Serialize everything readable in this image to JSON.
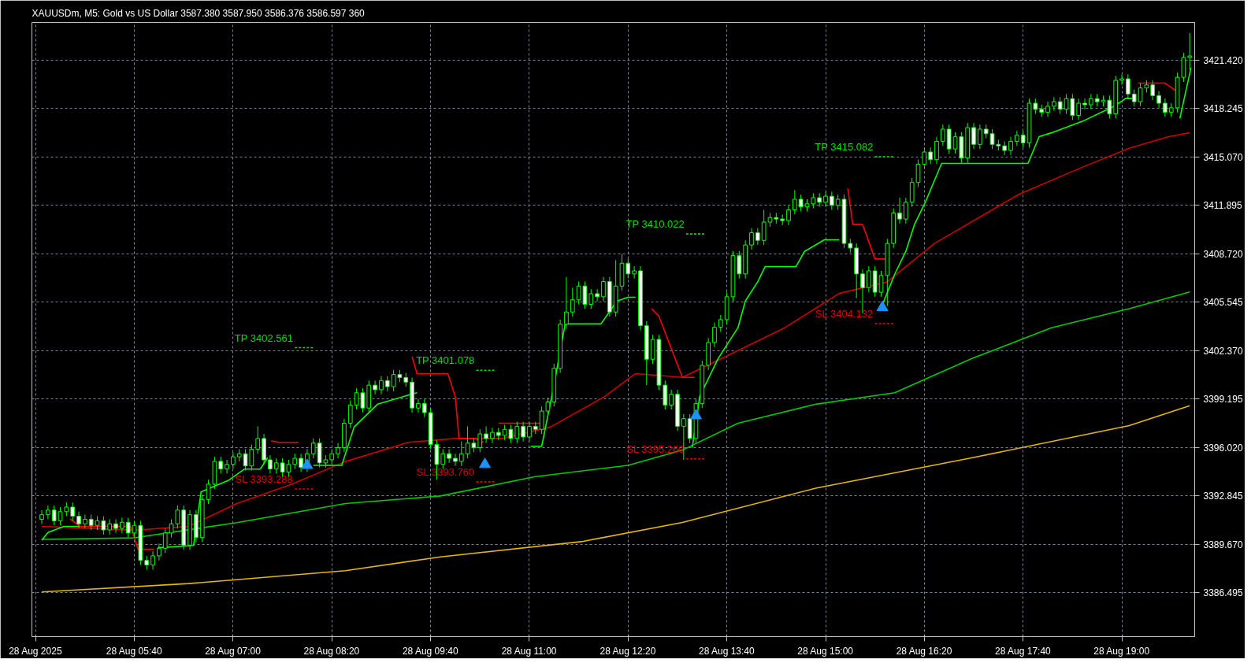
{
  "chart_data": {
    "type": "candlestick",
    "title": "XAUUSDm, M5:  Gold vs US Dollar  3587.380 3587.950 3586.376 3586.597  360",
    "xlim": [
      "2025-08-28T04:17",
      "2025-08-28T19:59"
    ],
    "ylim": [
      3383.6,
      3423.9
    ],
    "xticks": [
      {
        "value": "2025-08-28T04:20",
        "label": "28 Aug 2025"
      },
      {
        "value": "2025-08-28T05:40",
        "label": "28 Aug 05:40"
      },
      {
        "value": "2025-08-28T07:00",
        "label": "28 Aug 07:00"
      },
      {
        "value": "2025-08-28T08:20",
        "label": "28 Aug 08:20"
      },
      {
        "value": "2025-08-28T09:40",
        "label": "28 Aug 09:40"
      },
      {
        "value": "2025-08-28T11:00",
        "label": "28 Aug 11:00"
      },
      {
        "value": "2025-08-28T12:20",
        "label": "28 Aug 12:20"
      },
      {
        "value": "2025-08-28T13:40",
        "label": "28 Aug 13:40"
      },
      {
        "value": "2025-08-28T15:00",
        "label": "28 Aug 15:00"
      },
      {
        "value": "2025-08-28T16:20",
        "label": "28 Aug 16:20"
      },
      {
        "value": "2025-08-28T17:40",
        "label": "28 Aug 17:40"
      },
      {
        "value": "2025-08-28T19:00",
        "label": "28 Aug 19:00"
      }
    ],
    "yticks": [
      {
        "value": 3421.42,
        "label": "3421.420"
      },
      {
        "value": 3418.245,
        "label": "3418.245"
      },
      {
        "value": 3415.07,
        "label": "3415.070"
      },
      {
        "value": 3411.895,
        "label": "3411.895"
      },
      {
        "value": 3408.72,
        "label": "3408.720"
      },
      {
        "value": 3405.545,
        "label": "3405.545"
      },
      {
        "value": 3402.37,
        "label": "3402.370"
      },
      {
        "value": 3399.195,
        "label": "3399.195"
      },
      {
        "value": 3396.02,
        "label": "3396.020"
      },
      {
        "value": 3392.845,
        "label": "3392.845"
      },
      {
        "value": 3389.67,
        "label": "3389.670"
      },
      {
        "value": 3386.495,
        "label": "3386.495"
      }
    ],
    "grid": true,
    "series": [
      {
        "type": "line",
        "color": "#e6b800",
        "x": [
          "2025-08-28T04:25",
          "2025-08-28T06:24",
          "2025-08-28T08:31",
          "2025-08-28T09:48",
          "2025-08-28T11:42",
          "2025-08-28T13:04",
          "2025-08-28T14:52",
          "2025-08-28T16:59",
          "2025-08-28T19:06",
          "2025-08-28T19:55"
        ],
        "values": [
          3386.53,
          3387.08,
          3387.93,
          3388.83,
          3389.83,
          3391.09,
          3393.34,
          3395.34,
          3397.45,
          3398.75
        ]
      },
      {
        "type": "line",
        "color": "#00cc00",
        "x": [
          "2025-08-28T04:25",
          "2025-08-28T05:40",
          "2025-08-28T07:03",
          "2025-08-28T08:31",
          "2025-08-28T09:48",
          "2025-08-28T11:04",
          "2025-08-28T12:20",
          "2025-08-28T13:04",
          "2025-08-28T13:49",
          "2025-08-28T14:52",
          "2025-08-28T15:56",
          "2025-08-28T16:59",
          "2025-08-28T18:03",
          "2025-08-28T19:06",
          "2025-08-28T19:55"
        ],
        "values": [
          3389.98,
          3390.08,
          3391.08,
          3392.33,
          3392.83,
          3394.09,
          3394.84,
          3395.84,
          3397.6,
          3398.85,
          3399.6,
          3401.86,
          3403.87,
          3405.12,
          3406.22
        ]
      },
      {
        "type": "line",
        "color": "#cc0000",
        "x": [
          "2025-08-28T04:25",
          "2025-08-28T05:40",
          "2025-08-28T06:24",
          "2025-08-28T07:03",
          "2025-08-28T07:47",
          "2025-08-28T08:31",
          "2025-08-28T09:22",
          "2025-08-28T10:00",
          "2025-08-28T10:38",
          "2025-08-28T11:17",
          "2025-08-28T12:01",
          "2025-08-28T12:26",
          "2025-08-28T13:04",
          "2025-08-28T13:49",
          "2025-08-28T14:27",
          "2025-08-28T15:11",
          "2025-08-28T15:50",
          "2025-08-28T16:28",
          "2025-08-28T17:37",
          "2025-08-28T18:28",
          "2025-08-28T19:06",
          "2025-08-28T19:38",
          "2025-08-28T19:55"
        ],
        "values": [
          3390.83,
          3390.58,
          3390.83,
          3392.33,
          3393.59,
          3395.09,
          3396.35,
          3396.6,
          3396.6,
          3397.35,
          3399.35,
          3400.86,
          3400.61,
          3402.37,
          3403.87,
          3406.12,
          3406.88,
          3409.39,
          3412.64,
          3414.4,
          3415.65,
          3416.41,
          3416.66
        ]
      },
      {
        "color": "#00ff00",
        "x": [
          "2025-08-28T04:25",
          "2025-08-28T04:30",
          "2025-08-28T04:35",
          "2025-08-28T04:40",
          "2025-08-28T04:45",
          "2025-08-28T04:50",
          "2025-08-28T04:55",
          "2025-08-28T05:00",
          "2025-08-28T05:05",
          "2025-08-28T05:10",
          "2025-08-28T05:15",
          "2025-08-28T05:20",
          "2025-08-28T05:25",
          "2025-08-28T05:30",
          "2025-08-28T05:35",
          "2025-08-28T05:40",
          "2025-08-28T05:45",
          "2025-08-28T05:50",
          "2025-08-28T05:55",
          "2025-08-28T06:00",
          "2025-08-28T06:05",
          "2025-08-28T06:10",
          "2025-08-28T06:15",
          "2025-08-28T06:20",
          "2025-08-28T06:25",
          "2025-08-28T06:30",
          "2025-08-28T06:35",
          "2025-08-28T06:40",
          "2025-08-28T06:45",
          "2025-08-28T06:50",
          "2025-08-28T06:55",
          "2025-08-28T07:00",
          "2025-08-28T07:05",
          "2025-08-28T07:10",
          "2025-08-28T07:15",
          "2025-08-28T07:20",
          "2025-08-28T07:25",
          "2025-08-28T07:30",
          "2025-08-28T07:35",
          "2025-08-28T07:40",
          "2025-08-28T07:45",
          "2025-08-28T07:50",
          "2025-08-28T07:55",
          "2025-08-28T08:00",
          "2025-08-28T08:05",
          "2025-08-28T08:10",
          "2025-08-28T08:15",
          "2025-08-28T08:20",
          "2025-08-28T08:25",
          "2025-08-28T08:30",
          "2025-08-28T08:35",
          "2025-08-28T08:40",
          "2025-08-28T08:45",
          "2025-08-28T08:50",
          "2025-08-28T08:55",
          "2025-08-28T09:00",
          "2025-08-28T09:05",
          "2025-08-28T09:10",
          "2025-08-28T09:15",
          "2025-08-28T09:20",
          "2025-08-28T09:25",
          "2025-08-28T09:30",
          "2025-08-28T09:35",
          "2025-08-28T09:40",
          "2025-08-28T09:45",
          "2025-08-28T09:50",
          "2025-08-28T09:55",
          "2025-08-28T10:00",
          "2025-08-28T10:05",
          "2025-08-28T10:10",
          "2025-08-28T10:15",
          "2025-08-28T10:20",
          "2025-08-28T10:25",
          "2025-08-28T10:30",
          "2025-08-28T10:35",
          "2025-08-28T10:40",
          "2025-08-28T10:45",
          "2025-08-28T10:50",
          "2025-08-28T10:55",
          "2025-08-28T11:00",
          "2025-08-28T11:05",
          "2025-08-28T11:10",
          "2025-08-28T11:15",
          "2025-08-28T11:20",
          "2025-08-28T11:25",
          "2025-08-28T11:30",
          "2025-08-28T11:35",
          "2025-08-28T11:40",
          "2025-08-28T11:45",
          "2025-08-28T11:50",
          "2025-08-28T11:55",
          "2025-08-28T12:00",
          "2025-08-28T12:05",
          "2025-08-28T12:10",
          "2025-08-28T12:15",
          "2025-08-28T12:20",
          "2025-08-28T12:25",
          "2025-08-28T12:30",
          "2025-08-28T12:35",
          "2025-08-28T12:40",
          "2025-08-28T12:45",
          "2025-08-28T12:50",
          "2025-08-28T12:55",
          "2025-08-28T13:00",
          "2025-08-28T13:05",
          "2025-08-28T13:10",
          "2025-08-28T13:15",
          "2025-08-28T13:20",
          "2025-08-28T13:25",
          "2025-08-28T13:30",
          "2025-08-28T13:35",
          "2025-08-28T13:40",
          "2025-08-28T13:45",
          "2025-08-28T13:50",
          "2025-08-28T13:55",
          "2025-08-28T14:00",
          "2025-08-28T14:05",
          "2025-08-28T14:10",
          "2025-08-28T14:15",
          "2025-08-28T14:20",
          "2025-08-28T14:25",
          "2025-08-28T14:30",
          "2025-08-28T14:35",
          "2025-08-28T14:40",
          "2025-08-28T14:45",
          "2025-08-28T14:50",
          "2025-08-28T14:55",
          "2025-08-28T15:00",
          "2025-08-28T15:05",
          "2025-08-28T15:10",
          "2025-08-28T15:15",
          "2025-08-28T15:20",
          "2025-08-28T15:25",
          "2025-08-28T15:30",
          "2025-08-28T15:35",
          "2025-08-28T15:40",
          "2025-08-28T15:45",
          "2025-08-28T15:50",
          "2025-08-28T15:55",
          "2025-08-28T16:00",
          "2025-08-28T16:05",
          "2025-08-28T16:10",
          "2025-08-28T16:15",
          "2025-08-28T16:20",
          "2025-08-28T16:25",
          "2025-08-28T16:30",
          "2025-08-28T16:35",
          "2025-08-28T16:40",
          "2025-08-28T16:45",
          "2025-08-28T16:50",
          "2025-08-28T16:55",
          "2025-08-28T17:00",
          "2025-08-28T17:05",
          "2025-08-28T17:10",
          "2025-08-28T17:15",
          "2025-08-28T17:20",
          "2025-08-28T17:25",
          "2025-08-28T17:30",
          "2025-08-28T17:35",
          "2025-08-28T17:40",
          "2025-08-28T17:45",
          "2025-08-28T17:50",
          "2025-08-28T17:55",
          "2025-08-28T18:00",
          "2025-08-28T18:05",
          "2025-08-28T18:10",
          "2025-08-28T18:15",
          "2025-08-28T18:20",
          "2025-08-28T18:25",
          "2025-08-28T18:30",
          "2025-08-28T18:35",
          "2025-08-28T18:40",
          "2025-08-28T18:45",
          "2025-08-28T18:50",
          "2025-08-28T18:55",
          "2025-08-28T19:00",
          "2025-08-28T19:05",
          "2025-08-28T19:10",
          "2025-08-28T19:15",
          "2025-08-28T19:20",
          "2025-08-28T19:25",
          "2025-08-28T19:30",
          "2025-08-28T19:35",
          "2025-08-28T19:40",
          "2025-08-28T19:45",
          "2025-08-28T19:50",
          "2025-08-28T19:55"
        ],
        "ohlc": [
          [
            3391.3,
            3391.9,
            3391.0,
            3391.6
          ],
          [
            3391.6,
            3392.2,
            3391.3,
            3391.9
          ],
          [
            3391.9,
            3392.2,
            3390.9,
            3391.2
          ],
          [
            3391.2,
            3392.1,
            3390.9,
            3391.8
          ],
          [
            3391.8,
            3392.4,
            3391.5,
            3392.1
          ],
          [
            3392.1,
            3392.4,
            3391.2,
            3391.5
          ],
          [
            3391.5,
            3391.8,
            3390.7,
            3391.0
          ],
          [
            3391.0,
            3391.6,
            3390.7,
            3391.3
          ],
          [
            3391.3,
            3391.6,
            3390.6,
            3390.9
          ],
          [
            3390.9,
            3391.5,
            3390.6,
            3391.2
          ],
          [
            3391.2,
            3391.5,
            3390.3,
            3390.6
          ],
          [
            3390.6,
            3391.3,
            3390.3,
            3391.0
          ],
          [
            3391.0,
            3391.3,
            3390.4,
            3390.7
          ],
          [
            3390.7,
            3391.4,
            3390.4,
            3391.1
          ],
          [
            3391.1,
            3391.4,
            3390.1,
            3390.4
          ],
          [
            3390.4,
            3391.2,
            3390.1,
            3390.9
          ],
          [
            3390.9,
            3391.2,
            3388.3,
            3388.6
          ],
          [
            3388.6,
            3388.9,
            3388.0,
            3388.3
          ],
          [
            3388.3,
            3389.2,
            3388.0,
            3388.9
          ],
          [
            3388.9,
            3389.7,
            3388.6,
            3389.4
          ],
          [
            3389.4,
            3390.7,
            3389.1,
            3390.4
          ],
          [
            3390.4,
            3391.3,
            3390.1,
            3391.0
          ],
          [
            3391.0,
            3392.2,
            3390.7,
            3391.9
          ],
          [
            3391.9,
            3392.2,
            3389.3,
            3389.6
          ],
          [
            3389.6,
            3391.9,
            3389.3,
            3391.6
          ],
          [
            3391.6,
            3391.9,
            3389.8,
            3390.1
          ],
          [
            3390.1,
            3392.9,
            3389.8,
            3392.6
          ],
          [
            3392.6,
            3393.9,
            3392.3,
            3393.6
          ],
          [
            3393.6,
            3395.4,
            3393.3,
            3395.1
          ],
          [
            3395.1,
            3395.4,
            3394.3,
            3394.6
          ],
          [
            3394.6,
            3395.2,
            3394.3,
            3394.9
          ],
          [
            3394.9,
            3395.7,
            3394.6,
            3395.4
          ],
          [
            3395.4,
            3395.9,
            3395.1,
            3395.6
          ],
          [
            3395.6,
            3395.9,
            3394.5,
            3394.8
          ],
          [
            3394.8,
            3396.2,
            3394.5,
            3395.9
          ],
          [
            3395.9,
            3397.4,
            3395.6,
            3396.6
          ],
          [
            3396.6,
            3396.9,
            3394.9,
            3395.2
          ],
          [
            3395.2,
            3395.5,
            3394.3,
            3394.6
          ],
          [
            3394.6,
            3395.3,
            3394.3,
            3395.0
          ],
          [
            3395.0,
            3395.3,
            3394.1,
            3394.4
          ],
          [
            3394.4,
            3395.2,
            3394.1,
            3394.9
          ],
          [
            3394.9,
            3395.6,
            3394.6,
            3395.3
          ],
          [
            3395.3,
            3395.6,
            3394.4,
            3394.7
          ],
          [
            3394.7,
            3395.9,
            3394.4,
            3395.6
          ],
          [
            3395.6,
            3396.6,
            3395.3,
            3396.3
          ],
          [
            3396.3,
            3396.6,
            3394.7,
            3395.0
          ],
          [
            3395.0,
            3395.5,
            3394.7,
            3395.2
          ],
          [
            3395.2,
            3395.9,
            3394.9,
            3395.6
          ],
          [
            3395.6,
            3396.3,
            3395.3,
            3396.0
          ],
          [
            3396.0,
            3397.9,
            3395.7,
            3397.6
          ],
          [
            3397.6,
            3399.1,
            3397.3,
            3398.8
          ],
          [
            3398.8,
            3399.9,
            3398.5,
            3399.6
          ],
          [
            3399.6,
            3399.9,
            3398.3,
            3398.6
          ],
          [
            3398.6,
            3400.4,
            3398.3,
            3400.1
          ],
          [
            3400.1,
            3400.4,
            3399.5,
            3399.8
          ],
          [
            3399.8,
            3400.7,
            3399.5,
            3400.4
          ],
          [
            3400.4,
            3400.7,
            3399.7,
            3400.0
          ],
          [
            3400.0,
            3401.1,
            3399.7,
            3400.8
          ],
          [
            3400.8,
            3401.1,
            3400.3,
            3400.6
          ],
          [
            3400.6,
            3400.9,
            3400.0,
            3400.3
          ],
          [
            3400.3,
            3400.6,
            3398.3,
            3398.6
          ],
          [
            3398.6,
            3399.2,
            3398.3,
            3398.9
          ],
          [
            3398.9,
            3399.2,
            3398.0,
            3398.3
          ],
          [
            3398.3,
            3398.6,
            3395.9,
            3396.2
          ],
          [
            3396.2,
            3396.5,
            3393.9,
            3394.9
          ],
          [
            3394.9,
            3395.9,
            3394.6,
            3395.6
          ],
          [
            3395.6,
            3395.9,
            3395.0,
            3395.3
          ],
          [
            3395.3,
            3395.6,
            3394.8,
            3395.1
          ],
          [
            3395.1,
            3396.4,
            3394.8,
            3395.6
          ],
          [
            3395.6,
            3397.4,
            3395.3,
            3396.3
          ],
          [
            3396.3,
            3396.6,
            3395.7,
            3396.0
          ],
          [
            3396.0,
            3397.2,
            3395.7,
            3396.9
          ],
          [
            3396.9,
            3397.4,
            3396.3,
            3396.6
          ],
          [
            3396.6,
            3397.3,
            3396.3,
            3397.0
          ],
          [
            3397.0,
            3397.3,
            3396.5,
            3396.8
          ],
          [
            3396.8,
            3397.5,
            3396.5,
            3397.2
          ],
          [
            3397.2,
            3397.5,
            3396.3,
            3396.6
          ],
          [
            3396.6,
            3397.7,
            3396.3,
            3397.4
          ],
          [
            3397.4,
            3397.7,
            3396.4,
            3396.7
          ],
          [
            3396.7,
            3397.7,
            3396.4,
            3397.4
          ],
          [
            3397.4,
            3397.7,
            3396.9,
            3397.2
          ],
          [
            3397.2,
            3398.7,
            3396.9,
            3398.4
          ],
          [
            3398.4,
            3399.3,
            3398.1,
            3399.0
          ],
          [
            3399.0,
            3401.5,
            3398.7,
            3401.2
          ],
          [
            3401.2,
            3404.4,
            3400.9,
            3404.1
          ],
          [
            3404.1,
            3407.2,
            3403.8,
            3404.9
          ],
          [
            3404.9,
            3406.5,
            3404.6,
            3405.7
          ],
          [
            3405.7,
            3406.9,
            3405.4,
            3406.6
          ],
          [
            3406.6,
            3406.9,
            3405.1,
            3405.4
          ],
          [
            3405.4,
            3406.4,
            3405.1,
            3406.1
          ],
          [
            3406.1,
            3406.4,
            3405.6,
            3405.9
          ],
          [
            3405.9,
            3407.2,
            3405.6,
            3406.9
          ],
          [
            3406.9,
            3407.2,
            3404.6,
            3404.9
          ],
          [
            3404.9,
            3408.3,
            3404.6,
            3406.6
          ],
          [
            3406.6,
            3408.7,
            3406.3,
            3408.1
          ],
          [
            3408.1,
            3408.4,
            3407.1,
            3407.4
          ],
          [
            3407.4,
            3407.9,
            3407.1,
            3407.6
          ],
          [
            3407.6,
            3407.9,
            3403.7,
            3404.0
          ],
          [
            3404.0,
            3404.3,
            3400.1,
            3401.8
          ],
          [
            3401.8,
            3403.4,
            3401.5,
            3403.1
          ],
          [
            3403.1,
            3403.4,
            3399.8,
            3400.1
          ],
          [
            3400.1,
            3400.4,
            3398.5,
            3398.8
          ],
          [
            3398.8,
            3399.8,
            3398.5,
            3399.5
          ],
          [
            3399.5,
            3399.8,
            3397.1,
            3397.4
          ],
          [
            3397.4,
            3398.2,
            3395.2,
            3397.9
          ],
          [
            3397.9,
            3398.2,
            3396.3,
            3396.6
          ],
          [
            3396.6,
            3399.2,
            3396.3,
            3398.9
          ],
          [
            3398.9,
            3401.7,
            3398.6,
            3401.4
          ],
          [
            3401.4,
            3403.2,
            3401.1,
            3402.9
          ],
          [
            3402.9,
            3404.2,
            3402.6,
            3403.9
          ],
          [
            3403.9,
            3404.7,
            3403.6,
            3404.4
          ],
          [
            3404.4,
            3406.2,
            3404.1,
            3405.9
          ],
          [
            3405.9,
            3408.9,
            3405.6,
            3408.6
          ],
          [
            3408.6,
            3408.9,
            3407.1,
            3407.4
          ],
          [
            3407.4,
            3409.6,
            3407.1,
            3409.3
          ],
          [
            3409.3,
            3410.4,
            3409.0,
            3410.1
          ],
          [
            3410.1,
            3410.4,
            3409.3,
            3409.6
          ],
          [
            3409.6,
            3411.6,
            3409.3,
            3410.8
          ],
          [
            3410.8,
            3411.4,
            3410.5,
            3411.1
          ],
          [
            3411.1,
            3411.4,
            3410.7,
            3411.0
          ],
          [
            3411.0,
            3411.3,
            3410.6,
            3410.9
          ],
          [
            3410.9,
            3411.9,
            3410.6,
            3411.6
          ],
          [
            3411.6,
            3412.9,
            3411.3,
            3412.3
          ],
          [
            3412.3,
            3412.6,
            3411.5,
            3411.8
          ],
          [
            3411.8,
            3412.3,
            3411.5,
            3412.0
          ],
          [
            3412.0,
            3412.7,
            3411.7,
            3412.4
          ],
          [
            3412.4,
            3412.7,
            3411.8,
            3412.1
          ],
          [
            3412.1,
            3412.8,
            3411.8,
            3412.5
          ],
          [
            3412.5,
            3412.8,
            3411.6,
            3411.9
          ],
          [
            3411.9,
            3412.6,
            3411.6,
            3412.3
          ],
          [
            3412.3,
            3412.6,
            3409.1,
            3409.4
          ],
          [
            3409.4,
            3409.7,
            3408.8,
            3409.1
          ],
          [
            3409.1,
            3409.4,
            3405.8,
            3407.4
          ],
          [
            3407.4,
            3407.7,
            3404.8,
            3406.5
          ],
          [
            3406.5,
            3407.9,
            3406.2,
            3407.6
          ],
          [
            3407.6,
            3407.9,
            3405.9,
            3406.2
          ],
          [
            3406.2,
            3407.6,
            3405.9,
            3407.3
          ],
          [
            3407.3,
            3409.7,
            3405.3,
            3409.4
          ],
          [
            3409.4,
            3411.7,
            3409.1,
            3411.4
          ],
          [
            3411.4,
            3412.4,
            3410.7,
            3411.0
          ],
          [
            3411.0,
            3412.4,
            3410.7,
            3412.1
          ],
          [
            3412.1,
            3413.7,
            3411.8,
            3413.4
          ],
          [
            3413.4,
            3414.9,
            3413.1,
            3414.6
          ],
          [
            3414.6,
            3415.7,
            3414.3,
            3415.4
          ],
          [
            3415.4,
            3415.7,
            3414.6,
            3414.9
          ],
          [
            3414.9,
            3416.4,
            3414.6,
            3416.1
          ],
          [
            3416.1,
            3417.2,
            3415.8,
            3416.9
          ],
          [
            3416.9,
            3417.2,
            3415.3,
            3415.6
          ],
          [
            3415.6,
            3416.7,
            3415.3,
            3416.4
          ],
          [
            3416.4,
            3416.7,
            3414.7,
            3415.0
          ],
          [
            3415.0,
            3417.3,
            3414.7,
            3417.0
          ],
          [
            3417.0,
            3417.3,
            3415.6,
            3415.9
          ],
          [
            3415.9,
            3417.2,
            3415.6,
            3416.9
          ],
          [
            3416.9,
            3417.2,
            3416.3,
            3416.6
          ],
          [
            3416.6,
            3416.9,
            3415.6,
            3415.9
          ],
          [
            3415.9,
            3416.2,
            3415.5,
            3415.8
          ],
          [
            3415.8,
            3416.1,
            3415.2,
            3415.5
          ],
          [
            3415.5,
            3416.4,
            3415.2,
            3416.1
          ],
          [
            3416.1,
            3416.8,
            3415.8,
            3416.5
          ],
          [
            3416.5,
            3416.8,
            3415.7,
            3416.0
          ],
          [
            3416.0,
            3418.9,
            3415.7,
            3418.6
          ],
          [
            3418.6,
            3418.9,
            3417.9,
            3418.2
          ],
          [
            3418.2,
            3418.5,
            3417.7,
            3418.0
          ],
          [
            3418.0,
            3418.7,
            3417.7,
            3418.4
          ],
          [
            3418.4,
            3419.0,
            3418.1,
            3418.7
          ],
          [
            3418.7,
            3419.0,
            3417.9,
            3418.2
          ],
          [
            3418.2,
            3419.2,
            3417.9,
            3418.9
          ],
          [
            3418.9,
            3419.2,
            3417.5,
            3417.8
          ],
          [
            3417.8,
            3418.9,
            3417.5,
            3418.6
          ],
          [
            3418.6,
            3418.9,
            3418.2,
            3418.5
          ],
          [
            3418.5,
            3419.2,
            3418.2,
            3418.9
          ],
          [
            3418.9,
            3419.2,
            3418.4,
            3418.7
          ],
          [
            3418.7,
            3419.1,
            3418.4,
            3418.8
          ],
          [
            3418.8,
            3419.1,
            3417.6,
            3417.9
          ],
          [
            3417.9,
            3420.4,
            3417.6,
            3420.1
          ],
          [
            3420.1,
            3420.5,
            3419.8,
            3420.2
          ],
          [
            3420.2,
            3420.5,
            3418.9,
            3419.2
          ],
          [
            3419.2,
            3419.5,
            3418.4,
            3418.7
          ],
          [
            3418.7,
            3419.9,
            3418.4,
            3419.6
          ],
          [
            3419.6,
            3420.1,
            3419.3,
            3419.8
          ],
          [
            3419.8,
            3420.1,
            3418.8,
            3419.1
          ],
          [
            3419.1,
            3419.4,
            3418.3,
            3418.6
          ],
          [
            3418.6,
            3418.9,
            3417.7,
            3418.0
          ],
          [
            3418.0,
            3418.6,
            3417.7,
            3418.3
          ],
          [
            3418.3,
            3420.6,
            3418.0,
            3420.3
          ],
          [
            3420.3,
            3421.9,
            3420.0,
            3421.6
          ],
          [
            3421.6,
            3423.2,
            3420.8,
            3421.7
          ]
        ]
      },
      {
        "type": "line",
        "color": "#00ff00",
        "x": [
          "2025-08-28T04:25",
          "2025-08-28T04:30",
          "2025-08-28T04:43",
          "2025-08-28T04:56"
        ],
        "values": [
          3389.93,
          3390.43,
          3390.83,
          3390.83
        ]
      },
      {
        "type": "line",
        "color": "#ff0000",
        "x": [
          "2025-08-28T04:48",
          "2025-08-28T04:56",
          "2025-08-28T05:37",
          "2025-08-28T05:43",
          "2025-08-28T05:56"
        ],
        "values": [
          3391.33,
          3390.83,
          3390.83,
          3389.33,
          3389.33
        ]
      },
      {
        "type": "line",
        "color": "#00ff00",
        "x": [
          "2025-08-28T05:59",
          "2025-08-28T06:28",
          "2025-08-28T06:34",
          "2025-08-28T06:44",
          "2025-08-28T06:56",
          "2025-08-28T07:09",
          "2025-08-28T07:22",
          "2025-08-28T07:28"
        ],
        "values": [
          3389.43,
          3389.58,
          3393.09,
          3393.44,
          3393.84,
          3394.59,
          3394.59,
          3395.34
        ]
      },
      {
        "type": "line",
        "color": "#ff0000",
        "x": [
          "2025-08-28T07:31",
          "2025-08-28T07:37",
          "2025-08-28T07:53"
        ],
        "values": [
          3396.45,
          3396.35,
          3396.35
        ]
      },
      {
        "type": "line",
        "color": "#00ff00",
        "x": [
          "2025-08-28T08:05",
          "2025-08-28T08:28",
          "2025-08-28T08:38",
          "2025-08-28T08:57",
          "2025-08-28T09:22",
          "2025-08-28T09:29"
        ],
        "values": [
          3394.84,
          3394.84,
          3397.35,
          3398.85,
          3399.45,
          3399.6
        ]
      },
      {
        "type": "line",
        "color": "#ff0000",
        "x": [
          "2025-08-28T09:25",
          "2025-08-28T09:29",
          "2025-08-28T09:54",
          "2025-08-28T10:00",
          "2025-08-28T10:03",
          "2025-08-28T10:16",
          "2025-08-28T10:23"
        ],
        "values": [
          3401.96,
          3400.86,
          3400.86,
          3399.35,
          3396.6,
          3396.6,
          3396.35
        ]
      },
      {
        "type": "line",
        "color": "#ff0000",
        "x": [
          "2025-08-28T10:35",
          "2025-08-28T11:10"
        ],
        "values": [
          3397.6,
          3397.6
        ]
      },
      {
        "type": "line",
        "color": "#00ff00",
        "x": [
          "2025-08-28T11:01",
          "2025-08-28T11:10",
          "2025-08-28T11:20",
          "2025-08-28T11:29",
          "2025-08-28T11:58",
          "2025-08-28T12:11",
          "2025-08-28T12:20",
          "2025-08-28T12:26"
        ],
        "values": [
          3396.09,
          3396.09,
          3400.11,
          3404.12,
          3404.12,
          3405.62,
          3405.87,
          3405.87
        ]
      },
      {
        "type": "line",
        "color": "#ff0000",
        "x": [
          "2025-08-28T12:39",
          "2025-08-28T12:45",
          "2025-08-28T12:58",
          "2025-08-28T13:04",
          "2025-08-28T13:14"
        ],
        "values": [
          3405.12,
          3404.62,
          3401.86,
          3400.61,
          3400.61
        ]
      },
      {
        "type": "line",
        "color": "#00ff00",
        "x": [
          "2025-08-28T13:12",
          "2025-08-28T13:18",
          "2025-08-28T13:33",
          "2025-08-28T13:49",
          "2025-08-28T13:55",
          "2025-08-28T14:05",
          "2025-08-28T14:11",
          "2025-08-28T14:36",
          "2025-08-28T14:43",
          "2025-08-28T14:59",
          "2025-08-28T15:11"
        ],
        "values": [
          3396.0,
          3399.35,
          3401.86,
          3403.87,
          3405.62,
          3406.88,
          3407.88,
          3407.88,
          3408.88,
          3409.64,
          3409.64
        ]
      },
      {
        "type": "line",
        "color": "#ff0000",
        "x": [
          "2025-08-28T15:18",
          "2025-08-28T15:22",
          "2025-08-28T15:30",
          "2025-08-28T15:40",
          "2025-08-28T15:50"
        ],
        "values": [
          3413.0,
          3410.64,
          3410.64,
          3408.38,
          3408.38
        ]
      },
      {
        "type": "line",
        "color": "#00ff00",
        "x": [
          "2025-08-28T15:46",
          "2025-08-28T15:56",
          "2025-08-28T16:05",
          "2025-08-28T16:12",
          "2025-08-28T16:21",
          "2025-08-28T16:34",
          "2025-08-28T17:44",
          "2025-08-28T17:53",
          "2025-08-28T18:03",
          "2025-08-28T18:28",
          "2025-08-28T18:54",
          "2025-08-28T19:03",
          "2025-08-28T19:10"
        ],
        "values": [
          3405.37,
          3407.38,
          3408.88,
          3410.64,
          3412.14,
          3414.65,
          3414.65,
          3416.41,
          3416.66,
          3417.41,
          3418.41,
          3418.91,
          3418.91
        ]
      },
      {
        "type": "line",
        "color": "#ff0000",
        "x": [
          "2025-08-28T19:13",
          "2025-08-28T19:35",
          "2025-08-28T19:44"
        ],
        "values": [
          3419.92,
          3419.92,
          3419.41
        ]
      },
      {
        "type": "line",
        "color": "#00ff00",
        "x": [
          "2025-08-28T19:47",
          "2025-08-28T19:56"
        ],
        "values": [
          3417.6,
          3420.92
        ]
      },
      {
        "type": "scatter",
        "color": "#1e90ff",
        "marker": "triangle",
        "x": [
          "2025-08-28T08:00",
          "2025-08-28T10:24",
          "2025-08-28T13:15",
          "2025-08-28T15:46"
        ],
        "values": [
          3394.84,
          3394.9,
          3398.1,
          3405.2
        ]
      },
      {
        "type": "line",
        "name": "TP 3402.561",
        "color": "#00e000",
        "line_style": "dashed",
        "x": [
          "2025-08-28T07:50",
          "2025-08-28T08:05"
        ],
        "values": [
          3402.561,
          3402.561
        ]
      },
      {
        "type": "line",
        "name": "SL 3393.288",
        "color": "#e00000",
        "line_style": "dashed",
        "x": [
          "2025-08-28T07:50",
          "2025-08-28T08:05"
        ],
        "values": [
          3393.288,
          3393.288
        ]
      },
      {
        "type": "line",
        "name": "TP 3401.078",
        "color": "#00e000",
        "line_style": "dashed",
        "x": [
          "2025-08-28T10:17",
          "2025-08-28T10:32"
        ],
        "values": [
          3401.078,
          3401.078
        ]
      },
      {
        "type": "line",
        "name": "SL 3393.760",
        "color": "#e00000",
        "line_style": "dashed",
        "x": [
          "2025-08-28T10:17",
          "2025-08-28T10:32"
        ],
        "values": [
          3393.76,
          3393.76
        ]
      },
      {
        "type": "line",
        "name": "TP 3410.022",
        "color": "#00e000",
        "line_style": "dashed",
        "x": [
          "2025-08-28T13:07",
          "2025-08-28T13:22"
        ],
        "values": [
          3410.022,
          3410.022
        ]
      },
      {
        "type": "line",
        "name": "SL 3395.260",
        "color": "#e00000",
        "line_style": "dashed",
        "x": [
          "2025-08-28T13:07",
          "2025-08-28T13:22"
        ],
        "values": [
          3395.26,
          3395.26
        ]
      },
      {
        "type": "line",
        "name": "TP 3415.082",
        "color": "#00e000",
        "line_style": "dashed",
        "x": [
          "2025-08-28T15:40",
          "2025-08-28T15:55"
        ],
        "values": [
          3415.082,
          3415.082
        ]
      },
      {
        "type": "line",
        "name": "SL 3404.132",
        "color": "#e00000",
        "line_style": "dashed",
        "x": [
          "2025-08-28T15:40",
          "2025-08-28T15:55"
        ],
        "values": [
          3404.132,
          3404.132
        ]
      }
    ]
  }
}
